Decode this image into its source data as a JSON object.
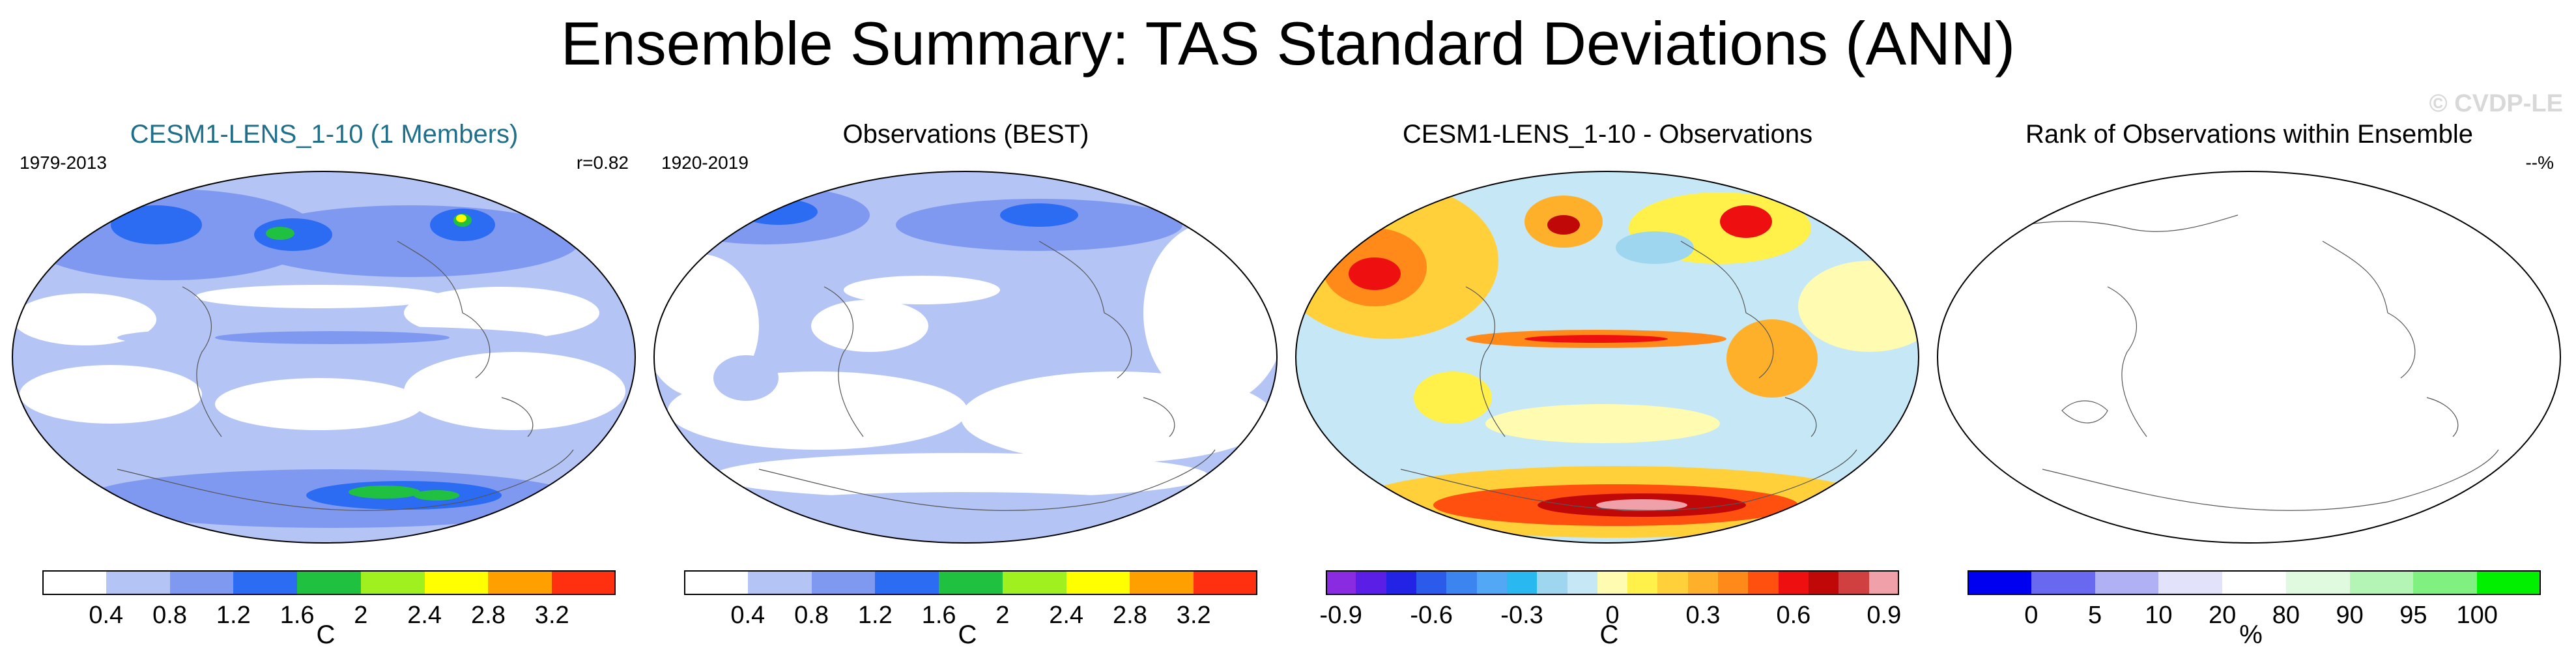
{
  "page": {
    "title": "Ensemble Summary: TAS Standard Deviations (ANN)",
    "watermark": "© CVDP-LE"
  },
  "chart_data": [
    {
      "type": "heatmap",
      "panel": "model",
      "title": "CESM1-LENS_1-10 (1 Members)",
      "period": "1979-2013",
      "stat": "r=0.82",
      "unit": "C",
      "colorbar": {
        "ticks": [
          "0.4",
          "0.8",
          "1.2",
          "1.6",
          "2",
          "2.4",
          "2.8",
          "3.2"
        ],
        "colors": [
          "#ffffff",
          "#b4c4f5",
          "#8099f0",
          "#2b6cf2",
          "#20c040",
          "#a0f020",
          "#ffff00",
          "#ffa000",
          "#ff3010"
        ]
      }
    },
    {
      "type": "heatmap",
      "panel": "observations",
      "title": "Observations (BEST)",
      "period": "1920-2019",
      "stat": "",
      "unit": "C",
      "colorbar": {
        "ticks": [
          "0.4",
          "0.8",
          "1.2",
          "1.6",
          "2",
          "2.4",
          "2.8",
          "3.2"
        ],
        "colors": [
          "#ffffff",
          "#b4c4f5",
          "#8099f0",
          "#2b6cf2",
          "#20c040",
          "#a0f020",
          "#ffff00",
          "#ffa000",
          "#ff3010"
        ]
      }
    },
    {
      "type": "heatmap",
      "panel": "difference",
      "title": "CESM1-LENS_1-10 - Observations",
      "period": "",
      "stat": "",
      "unit": "C",
      "colorbar": {
        "ticks": [
          "-0.9",
          "-0.6",
          "-0.3",
          "0",
          "0.3",
          "0.6",
          "0.9"
        ],
        "colors": [
          "#8a2be2",
          "#5a1ee6",
          "#2323e6",
          "#2c5aea",
          "#3c84f0",
          "#52a8f4",
          "#2ab8f0",
          "#9ed6f0",
          "#c6e8f6",
          "#fffbb0",
          "#fff04a",
          "#ffd03a",
          "#ffb02a",
          "#ff8a1a",
          "#ff5010",
          "#ee1010",
          "#c00808",
          "#d04040",
          "#f0a0a8"
        ]
      }
    },
    {
      "type": "heatmap",
      "panel": "rank",
      "title": "Rank of Observations within Ensemble",
      "period": "",
      "stat": "--%",
      "unit": "%",
      "colorbar": {
        "ticks": [
          "0",
          "5",
          "10",
          "20",
          "80",
          "90",
          "95",
          "100"
        ],
        "colors": [
          "#0000f0",
          "#6868f0",
          "#b0b0f4",
          "#e2e2fa",
          "#ffffff",
          "#e0fae0",
          "#b4f4b4",
          "#80f080",
          "#00f000"
        ]
      }
    }
  ]
}
